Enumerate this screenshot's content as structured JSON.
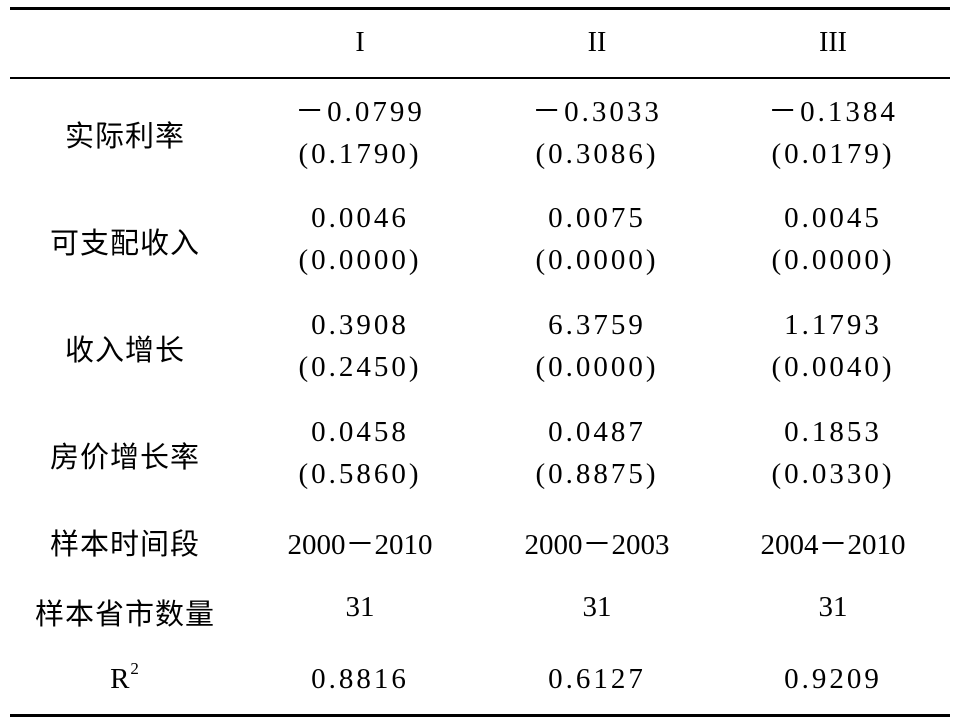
{
  "header": {
    "columns": [
      "I",
      "II",
      "III"
    ]
  },
  "rows": [
    {
      "label": "实际利率",
      "values": [
        {
          "coef": "－0.0799",
          "se": "(0.1790)"
        },
        {
          "coef": "－0.3033",
          "se": "(0.3086)"
        },
        {
          "coef": "－0.1384",
          "se": "(0.0179)"
        }
      ]
    },
    {
      "label": "可支配收入",
      "values": [
        {
          "coef": "0.0046",
          "se": "(0.0000)"
        },
        {
          "coef": "0.0075",
          "se": "(0.0000)"
        },
        {
          "coef": "0.0045",
          "se": "(0.0000)"
        }
      ]
    },
    {
      "label": "收入增长",
      "values": [
        {
          "coef": "0.3908",
          "se": "(0.2450)"
        },
        {
          "coef": "6.3759",
          "se": "(0.0000)"
        },
        {
          "coef": "1.1793",
          "se": "(0.0040)"
        }
      ]
    },
    {
      "label": "房价增长率",
      "values": [
        {
          "coef": "0.0458",
          "se": "(0.5860)"
        },
        {
          "coef": "0.0487",
          "se": "(0.8875)"
        },
        {
          "coef": "0.1853",
          "se": "(0.0330)"
        }
      ]
    }
  ],
  "sample_period": {
    "label": "样本时间段",
    "values": [
      "2000－2010",
      "2000－2003",
      "2004－2010"
    ]
  },
  "sample_count": {
    "label": "样本省市数量",
    "values": [
      "31",
      "31",
      "31"
    ]
  },
  "r2": {
    "label_base": "R",
    "label_sup": "2",
    "values": [
      "0.8816",
      "0.6127",
      "0.9209"
    ]
  }
}
